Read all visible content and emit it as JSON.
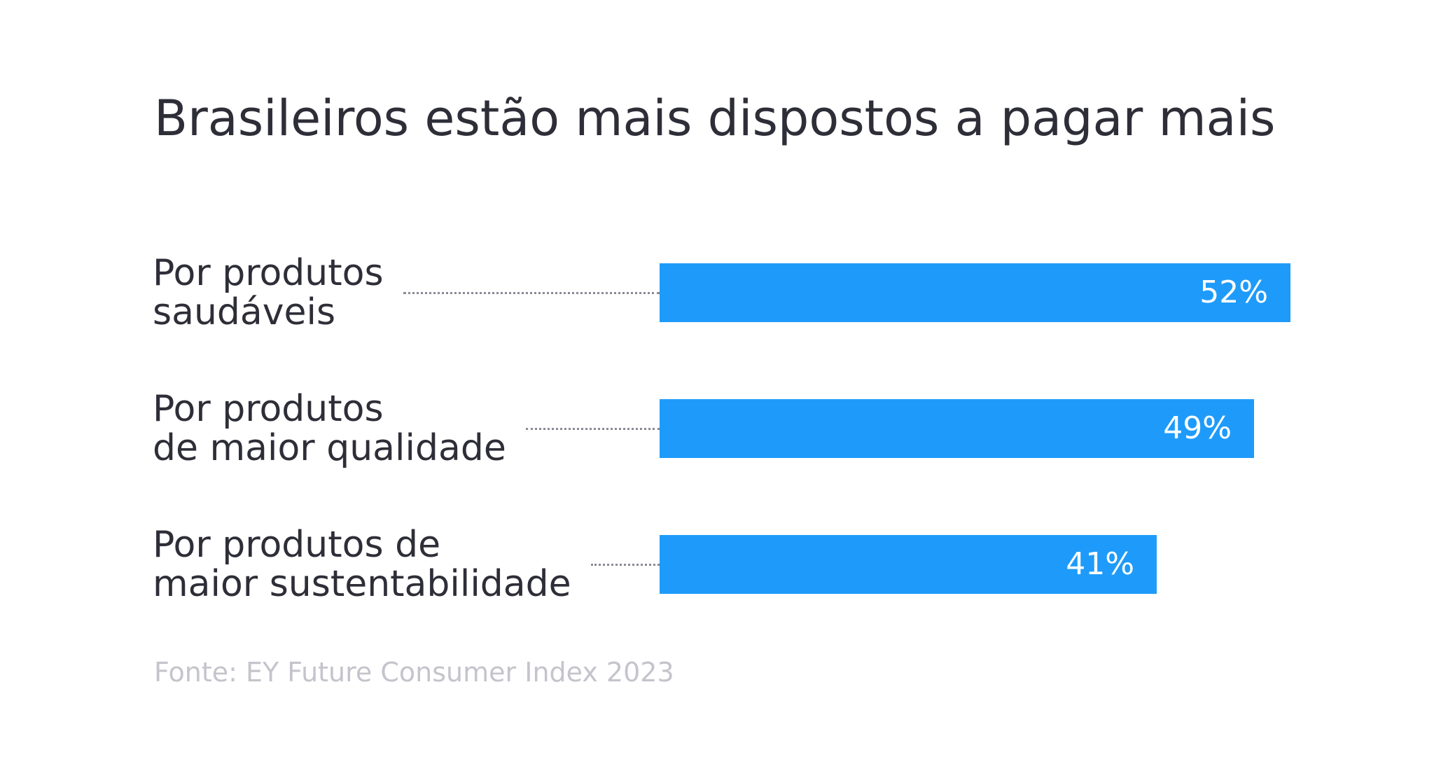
{
  "chart_data": {
    "type": "bar",
    "orientation": "horizontal",
    "title": "Brasileiros estão mais dispostos a pagar mais",
    "categories": [
      [
        "Por produtos",
        "saudáveis"
      ],
      [
        "Por produtos",
        "de maior qualidade"
      ],
      [
        "Por produtos de",
        "maior sustentabilidade"
      ]
    ],
    "values": [
      52,
      49,
      41
    ],
    "value_labels": [
      "52%",
      "49%",
      "41%"
    ],
    "unit": "%",
    "xlim": [
      0,
      52
    ],
    "xlabel": "",
    "ylabel": "",
    "grid": false,
    "legend": "none",
    "colors": {
      "bar": "#1e9bfa",
      "label": "#ffffff",
      "text": "#2e2e38",
      "source": "#c4c4cc"
    },
    "source": "Fonte: EY Future Consumer Index 2023"
  }
}
